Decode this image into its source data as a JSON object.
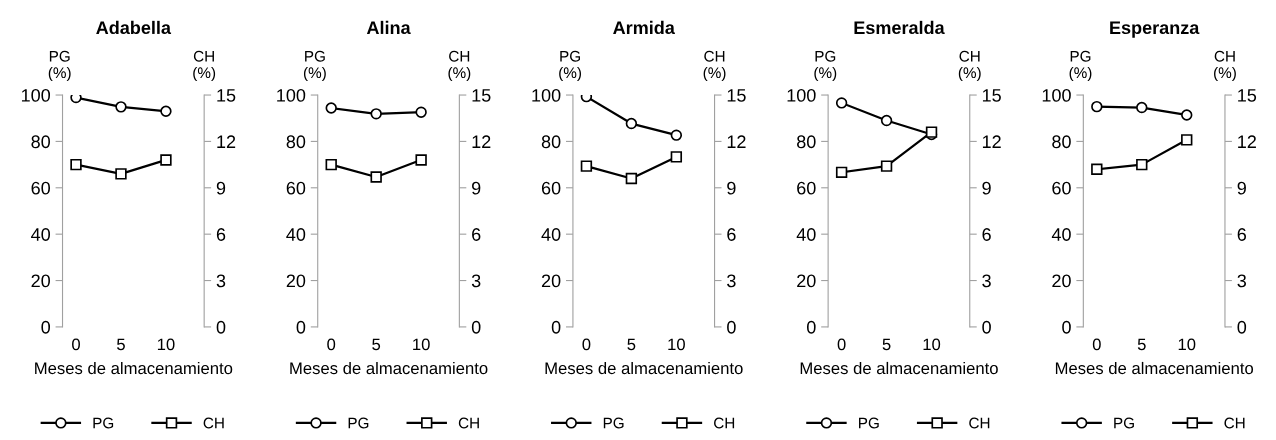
{
  "chart_data": [
    {
      "type": "line",
      "title": "Adabella",
      "xlabel": "Meses de almacenamiento",
      "ylabel": "PG\n(%)",
      "y2label": "CH\n(%)",
      "categories": [
        "0",
        "5",
        "10"
      ],
      "series": [
        {
          "name": "PG",
          "color": "#000000",
          "marker": "circle",
          "values": [
            98.9,
            94.9,
            93.0
          ]
        },
        {
          "name": "CH",
          "color": "#000000",
          "marker": "square",
          "axis": "y2",
          "values": [
            10.5,
            9.9,
            10.8
          ]
        }
      ],
      "ylim": [
        0,
        100
      ],
      "yticks": [
        0,
        20,
        40,
        60,
        80,
        100
      ],
      "y2lim": [
        0,
        15
      ],
      "y2ticks": [
        0,
        3,
        6,
        9,
        12,
        15
      ],
      "legend": "bottom"
    },
    {
      "type": "line",
      "title": "Alina",
      "xlabel": "Meses de almacenamiento",
      "ylabel": "PG\n(%)",
      "y2label": "CH\n(%)",
      "categories": [
        "0",
        "5",
        "10"
      ],
      "series": [
        {
          "name": "PG",
          "color": "#000000",
          "marker": "circle",
          "values": [
            94.4,
            91.9,
            92.6
          ]
        },
        {
          "name": "CH",
          "color": "#000000",
          "marker": "square",
          "axis": "y2",
          "values": [
            10.5,
            9.7,
            10.8
          ]
        }
      ],
      "ylim": [
        0,
        100
      ],
      "yticks": [
        0,
        20,
        40,
        60,
        80,
        100
      ],
      "y2lim": [
        0,
        15
      ],
      "y2ticks": [
        0,
        3,
        6,
        9,
        12,
        15
      ],
      "legend": "bottom"
    },
    {
      "type": "line",
      "title": "Armida",
      "xlabel": "Meses de almacenamiento",
      "ylabel": "PG\n(%)",
      "y2label": "CH\n(%)",
      "categories": [
        "0",
        "5",
        "10"
      ],
      "series": [
        {
          "name": "PG",
          "color": "#000000",
          "marker": "circle",
          "values": [
            99.3,
            87.7,
            82.7
          ]
        },
        {
          "name": "CH",
          "color": "#000000",
          "marker": "square",
          "axis": "y2",
          "values": [
            10.4,
            9.6,
            11.0
          ]
        }
      ],
      "ylim": [
        0,
        100
      ],
      "yticks": [
        0,
        20,
        40,
        60,
        80,
        100
      ],
      "y2lim": [
        0,
        15
      ],
      "y2ticks": [
        0,
        3,
        6,
        9,
        12,
        15
      ],
      "legend": "bottom"
    },
    {
      "type": "line",
      "title": "Esmeralda",
      "xlabel": "Meses de almacenamiento",
      "ylabel": "PG\n(%)",
      "y2label": "CH\n(%)",
      "categories": [
        "0",
        "5",
        "10"
      ],
      "series": [
        {
          "name": "PG",
          "color": "#000000",
          "marker": "circle",
          "values": [
            96.6,
            89.0,
            83.0
          ]
        },
        {
          "name": "CH",
          "color": "#000000",
          "marker": "square",
          "axis": "y2",
          "values": [
            10.0,
            10.4,
            12.6
          ]
        }
      ],
      "ylim": [
        0,
        100
      ],
      "yticks": [
        0,
        20,
        40,
        60,
        80,
        100
      ],
      "y2lim": [
        0,
        15
      ],
      "y2ticks": [
        0,
        3,
        6,
        9,
        12,
        15
      ],
      "legend": "bottom"
    },
    {
      "type": "line",
      "title": "Esperanza",
      "xlabel": "Meses de almacenamiento",
      "ylabel": "PG\n(%)",
      "y2label": "CH\n(%)",
      "categories": [
        "0",
        "5",
        "10"
      ],
      "series": [
        {
          "name": "PG",
          "color": "#000000",
          "marker": "circle",
          "values": [
            95.0,
            94.6,
            91.4
          ]
        },
        {
          "name": "CH",
          "color": "#000000",
          "marker": "square",
          "axis": "y2",
          "values": [
            10.2,
            10.5,
            12.1
          ]
        }
      ],
      "ylim": [
        0,
        100
      ],
      "yticks": [
        0,
        20,
        40,
        60,
        80,
        100
      ],
      "y2lim": [
        0,
        15
      ],
      "y2ticks": [
        0,
        3,
        6,
        9,
        12,
        15
      ],
      "legend": "bottom"
    }
  ]
}
